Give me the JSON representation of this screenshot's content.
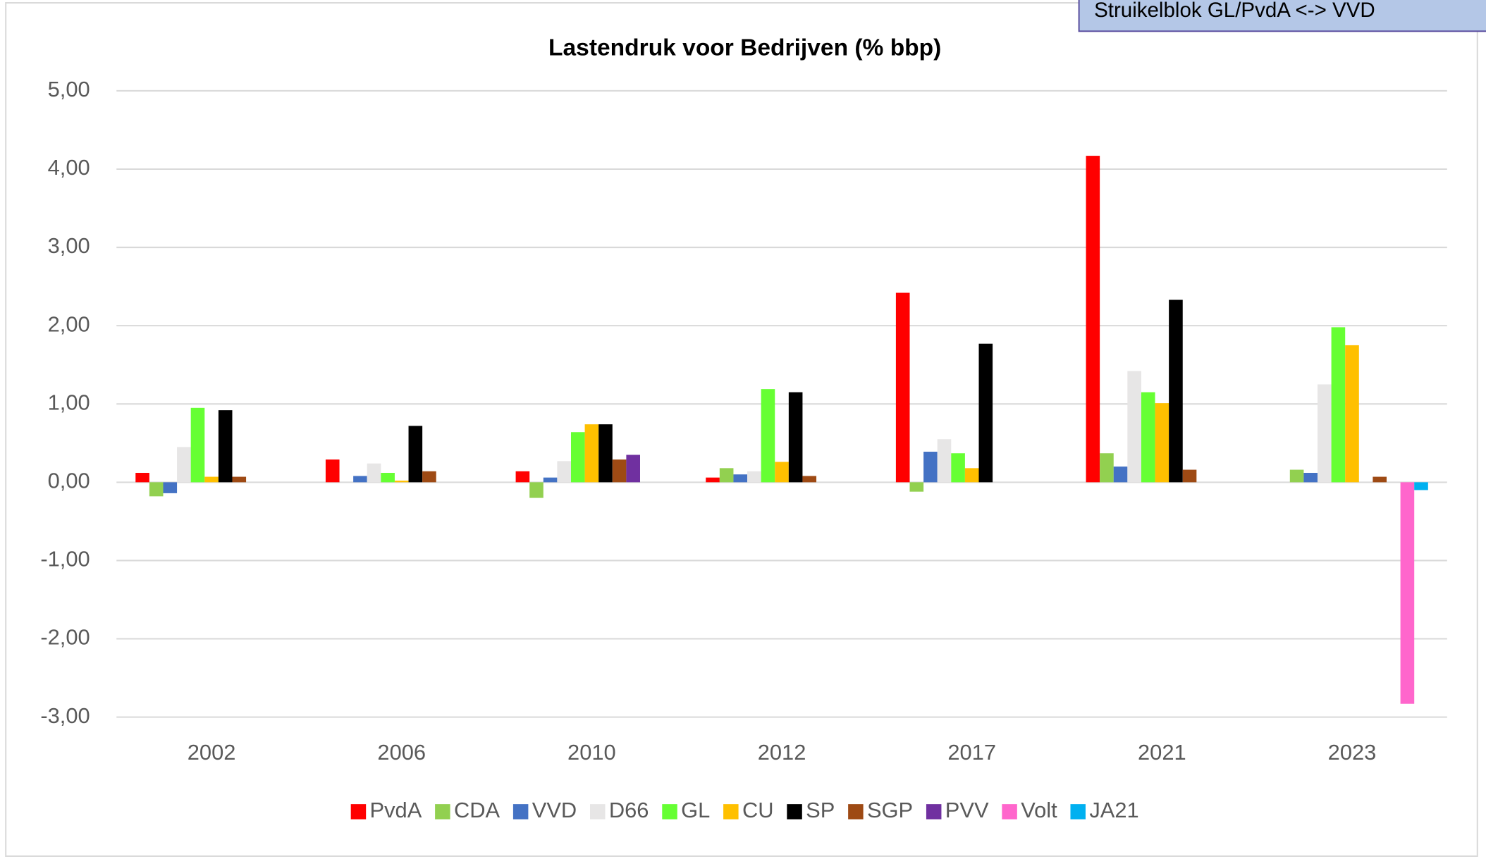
{
  "chart_data": {
    "type": "bar",
    "title": "Lastendruk voor Bedrijven (% bbp)",
    "annotation": "Struikelblok GL/PvdA <-> VVD",
    "categories": [
      "2002",
      "2006",
      "2010",
      "2012",
      "2017",
      "2021",
      "2023"
    ],
    "series": [
      {
        "name": "PvdA",
        "color": "#ff0000",
        "values": [
          0.12,
          0.29,
          0.14,
          0.06,
          2.42,
          4.17,
          null
        ]
      },
      {
        "name": "CDA",
        "color": "#92d050",
        "values": [
          -0.18,
          null,
          -0.2,
          0.18,
          -0.12,
          0.37,
          0.16
        ]
      },
      {
        "name": "VVD",
        "color": "#4472c4",
        "values": [
          -0.14,
          0.08,
          0.06,
          0.1,
          0.39,
          0.2,
          0.12
        ]
      },
      {
        "name": "D66",
        "color": "#e7e6e6",
        "values": [
          0.45,
          0.24,
          0.27,
          0.14,
          0.55,
          1.42,
          1.25
        ]
      },
      {
        "name": "GL",
        "color": "#66ff33",
        "values": [
          0.95,
          0.12,
          0.64,
          1.19,
          0.37,
          1.15,
          1.98
        ]
      },
      {
        "name": "CU",
        "color": "#ffc000",
        "values": [
          0.07,
          0.02,
          0.74,
          0.26,
          0.18,
          1.01,
          1.75
        ]
      },
      {
        "name": "SP",
        "color": "#000000",
        "values": [
          0.92,
          0.72,
          0.74,
          1.15,
          1.77,
          2.33,
          null
        ]
      },
      {
        "name": "SGP",
        "color": "#9e4a14",
        "values": [
          0.07,
          0.14,
          0.29,
          0.08,
          null,
          0.16,
          0.07
        ]
      },
      {
        "name": "PVV",
        "color": "#7030a0",
        "values": [
          null,
          null,
          0.35,
          null,
          null,
          null,
          null
        ]
      },
      {
        "name": "Volt",
        "color": "#ff66cc",
        "values": [
          null,
          null,
          null,
          null,
          null,
          null,
          -2.83
        ]
      },
      {
        "name": "JA21",
        "color": "#00b0f0",
        "values": [
          null,
          null,
          null,
          null,
          null,
          null,
          -0.1
        ]
      }
    ],
    "ylim": [
      -3,
      5
    ],
    "yticks": [
      {
        "value": -3,
        "label": "-3,00"
      },
      {
        "value": -2,
        "label": "-2,00"
      },
      {
        "value": -1,
        "label": "-1,00"
      },
      {
        "value": 0,
        "label": "0,00"
      },
      {
        "value": 1,
        "label": "1,00"
      },
      {
        "value": 2,
        "label": "2,00"
      },
      {
        "value": 3,
        "label": "3,00"
      },
      {
        "value": 4,
        "label": "4,00"
      },
      {
        "value": 5,
        "label": "5,00"
      }
    ],
    "grid": true,
    "legend": "bottom"
  }
}
